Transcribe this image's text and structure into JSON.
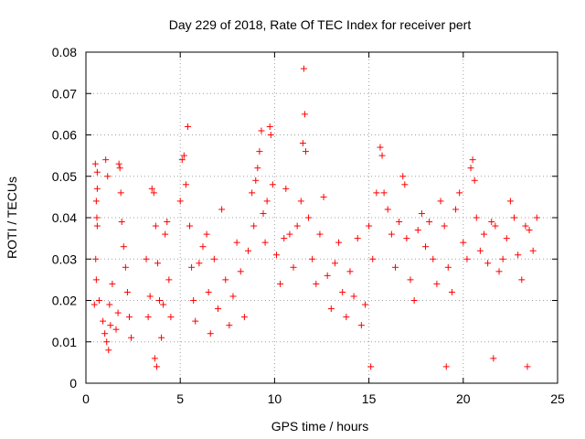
{
  "chart_data": {
    "type": "scatter",
    "title": "Day 229 of 2018, Rate Of TEC Index for receiver pert",
    "xlabel": "GPS time / hours",
    "ylabel": "ROTI / TECUs",
    "xlim": [
      0,
      25
    ],
    "ylim": [
      0,
      0.08
    ],
    "xticks": [
      0,
      5,
      10,
      15,
      20,
      25
    ],
    "xtick_labels": [
      "0",
      "5",
      "10",
      "15",
      "20",
      "25"
    ],
    "yticks": [
      0,
      0.01,
      0.02,
      0.03,
      0.04,
      0.05,
      0.06,
      0.07,
      0.08
    ],
    "ytick_labels": [
      "0",
      "0.01",
      "0.02",
      "0.03",
      "0.04",
      "0.05",
      "0.06",
      "0.07",
      "0.08"
    ],
    "grid": true,
    "marker": "+",
    "series": [
      {
        "name": "ROTI",
        "color": "#ff0000",
        "points": [
          [
            0.5,
            0.053
          ],
          [
            0.6,
            0.051
          ],
          [
            0.6,
            0.047
          ],
          [
            0.55,
            0.044
          ],
          [
            0.58,
            0.04
          ],
          [
            0.6,
            0.038
          ],
          [
            0.52,
            0.03
          ],
          [
            0.55,
            0.025
          ],
          [
            0.7,
            0.02
          ],
          [
            0.9,
            0.015
          ],
          [
            1.0,
            0.012
          ],
          [
            1.1,
            0.01
          ],
          [
            1.2,
            0.008
          ],
          [
            1.3,
            0.014
          ],
          [
            1.25,
            0.019
          ],
          [
            1.4,
            0.024
          ],
          [
            1.6,
            0.013
          ],
          [
            1.7,
            0.017
          ],
          [
            1.75,
            0.053
          ],
          [
            1.8,
            0.052
          ],
          [
            1.85,
            0.046
          ],
          [
            1.9,
            0.039
          ],
          [
            2.0,
            0.033
          ],
          [
            2.1,
            0.028
          ],
          [
            2.2,
            0.022
          ],
          [
            2.3,
            0.016
          ],
          [
            2.4,
            0.011
          ],
          [
            1.05,
            0.054
          ],
          [
            1.15,
            0.05
          ],
          [
            0.45,
            0.019
          ],
          [
            3.2,
            0.03
          ],
          [
            3.3,
            0.016
          ],
          [
            3.4,
            0.021
          ],
          [
            3.5,
            0.047
          ],
          [
            3.6,
            0.046
          ],
          [
            3.7,
            0.038
          ],
          [
            3.8,
            0.029
          ],
          [
            3.9,
            0.02
          ],
          [
            4.0,
            0.011
          ],
          [
            4.1,
            0.019
          ],
          [
            4.2,
            0.036
          ],
          [
            4.3,
            0.039
          ],
          [
            4.4,
            0.025
          ],
          [
            4.5,
            0.016
          ],
          [
            3.65,
            0.006
          ],
          [
            3.75,
            0.004
          ],
          [
            5.0,
            0.044
          ],
          [
            5.1,
            0.054
          ],
          [
            5.2,
            0.055
          ],
          [
            5.4,
            0.062
          ],
          [
            5.3,
            0.048
          ],
          [
            5.5,
            0.038
          ],
          [
            5.6,
            0.028
          ],
          [
            5.7,
            0.02
          ],
          [
            5.8,
            0.015
          ],
          [
            6.0,
            0.029
          ],
          [
            6.2,
            0.033
          ],
          [
            6.4,
            0.036
          ],
          [
            6.5,
            0.022
          ],
          [
            6.6,
            0.012
          ],
          [
            6.8,
            0.03
          ],
          [
            7.0,
            0.018
          ],
          [
            7.2,
            0.042
          ],
          [
            7.4,
            0.025
          ],
          [
            7.6,
            0.014
          ],
          [
            7.8,
            0.021
          ],
          [
            8.0,
            0.034
          ],
          [
            8.2,
            0.027
          ],
          [
            8.4,
            0.016
          ],
          [
            8.6,
            0.032
          ],
          [
            8.8,
            0.046
          ],
          [
            8.9,
            0.038
          ],
          [
            9.0,
            0.049
          ],
          [
            9.1,
            0.052
          ],
          [
            9.2,
            0.056
          ],
          [
            9.3,
            0.061
          ],
          [
            9.4,
            0.041
          ],
          [
            9.5,
            0.034
          ],
          [
            9.6,
            0.044
          ],
          [
            9.75,
            0.062
          ],
          [
            9.8,
            0.06
          ],
          [
            9.9,
            0.048
          ],
          [
            10.1,
            0.031
          ],
          [
            10.3,
            0.024
          ],
          [
            10.5,
            0.035
          ],
          [
            10.6,
            0.047
          ],
          [
            10.8,
            0.036
          ],
          [
            11.0,
            0.028
          ],
          [
            11.2,
            0.038
          ],
          [
            11.4,
            0.044
          ],
          [
            11.5,
            0.058
          ],
          [
            11.6,
            0.065
          ],
          [
            11.55,
            0.076
          ],
          [
            11.65,
            0.056
          ],
          [
            11.8,
            0.04
          ],
          [
            12.0,
            0.03
          ],
          [
            12.2,
            0.024
          ],
          [
            12.4,
            0.036
          ],
          [
            12.6,
            0.045
          ],
          [
            12.8,
            0.026
          ],
          [
            13.0,
            0.018
          ],
          [
            13.2,
            0.029
          ],
          [
            13.4,
            0.034
          ],
          [
            13.6,
            0.022
          ],
          [
            13.8,
            0.016
          ],
          [
            14.0,
            0.027
          ],
          [
            14.2,
            0.021
          ],
          [
            14.4,
            0.035
          ],
          [
            14.6,
            0.014
          ],
          [
            14.8,
            0.019
          ],
          [
            15.0,
            0.038
          ],
          [
            15.2,
            0.03
          ],
          [
            15.4,
            0.046
          ],
          [
            15.6,
            0.057
          ],
          [
            15.7,
            0.055
          ],
          [
            15.8,
            0.046
          ],
          [
            16.0,
            0.042
          ],
          [
            16.2,
            0.036
          ],
          [
            16.4,
            0.028
          ],
          [
            16.6,
            0.039
          ],
          [
            16.8,
            0.05
          ],
          [
            16.9,
            0.048
          ],
          [
            17.0,
            0.035
          ],
          [
            17.2,
            0.025
          ],
          [
            17.4,
            0.02
          ],
          [
            17.6,
            0.037
          ],
          [
            17.8,
            0.041
          ],
          [
            18.0,
            0.033
          ],
          [
            18.2,
            0.039
          ],
          [
            18.4,
            0.03
          ],
          [
            18.6,
            0.024
          ],
          [
            18.8,
            0.044
          ],
          [
            19.0,
            0.038
          ],
          [
            19.2,
            0.028
          ],
          [
            19.4,
            0.022
          ],
          [
            19.6,
            0.042
          ],
          [
            19.8,
            0.046
          ],
          [
            20.0,
            0.034
          ],
          [
            20.2,
            0.03
          ],
          [
            20.4,
            0.052
          ],
          [
            20.5,
            0.054
          ],
          [
            20.6,
            0.049
          ],
          [
            20.7,
            0.04
          ],
          [
            20.9,
            0.032
          ],
          [
            21.1,
            0.036
          ],
          [
            21.3,
            0.029
          ],
          [
            21.5,
            0.039
          ],
          [
            21.7,
            0.038
          ],
          [
            21.9,
            0.027
          ],
          [
            22.1,
            0.03
          ],
          [
            22.3,
            0.035
          ],
          [
            22.5,
            0.044
          ],
          [
            22.7,
            0.04
          ],
          [
            22.9,
            0.031
          ],
          [
            23.1,
            0.025
          ],
          [
            23.3,
            0.038
          ],
          [
            23.5,
            0.037
          ],
          [
            23.7,
            0.032
          ],
          [
            23.9,
            0.04
          ],
          [
            19.1,
            0.004
          ],
          [
            15.1,
            0.004
          ],
          [
            23.4,
            0.004
          ],
          [
            21.6,
            0.006
          ]
        ]
      }
    ]
  }
}
